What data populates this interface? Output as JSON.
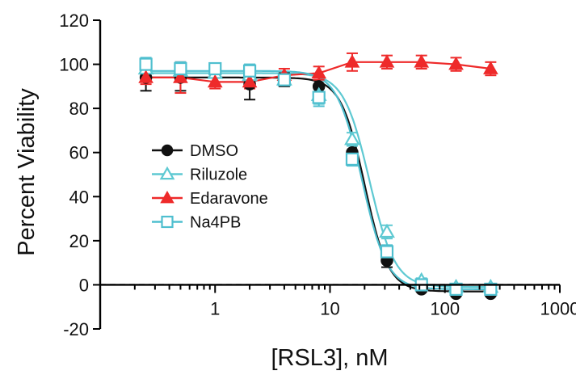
{
  "chart_data": {
    "type": "scatter",
    "title": "",
    "xlabel": "[RSL3], nM",
    "ylabel": "Percent Viability",
    "x_scale": "log",
    "xlim": [
      0.1,
      1000
    ],
    "ylim": [
      -20,
      120
    ],
    "x_ticks": [
      1,
      10,
      100,
      1000
    ],
    "x_tick_labels": [
      "1",
      "10",
      "100",
      "1000"
    ],
    "y_ticks": [
      -20,
      0,
      20,
      40,
      60,
      80,
      100,
      120
    ],
    "y_tick_labels": [
      "-20",
      "0",
      "20",
      "40",
      "60",
      "80",
      "100",
      "120"
    ],
    "reference_line": {
      "y": 0,
      "style": "dashed"
    },
    "legend_position": "center-left",
    "series": [
      {
        "name": "DMSO",
        "color": "#111111",
        "marker": "circle",
        "marker_filled": true,
        "x": [
          0.25,
          0.5,
          1,
          2,
          4,
          8,
          15.6,
          31.3,
          62.5,
          125,
          250
        ],
        "y": [
          94,
          94,
          97,
          91,
          93,
          90,
          60,
          11,
          -2,
          -4,
          -4
        ],
        "error": [
          6,
          6,
          3,
          7,
          3,
          4,
          4,
          3,
          1,
          1,
          1
        ],
        "fit": {
          "top": 94,
          "bottom": -3,
          "ic50": 20,
          "hill": 4.2
        }
      },
      {
        "name": "Riluzole",
        "color": "#5ec9d2",
        "marker": "triangle",
        "marker_filled": false,
        "x": [
          0.25,
          0.5,
          1,
          2,
          4,
          8,
          15.6,
          31.3,
          62.5,
          125,
          250
        ],
        "y": [
          98,
          97,
          96,
          95,
          93,
          86,
          66,
          24,
          2,
          -1,
          -1
        ],
        "error": [
          3,
          2,
          2,
          2,
          2,
          4,
          3,
          3,
          1,
          1,
          1
        ],
        "fit": {
          "top": 96,
          "bottom": -1,
          "ic50": 22,
          "hill": 3.9
        }
      },
      {
        "name": "Edaravone",
        "color": "#ee2a2a",
        "marker": "triangle",
        "marker_filled": true,
        "x": [
          0.25,
          0.5,
          1,
          2,
          4,
          8,
          15.6,
          31.3,
          62.5,
          125,
          250
        ],
        "y": [
          94,
          94,
          92,
          92,
          95,
          96,
          101,
          101,
          101,
          100,
          98
        ],
        "error": [
          3,
          7,
          3,
          3,
          3,
          3,
          4,
          3,
          3,
          3,
          3
        ]
      },
      {
        "name": "Na4PB",
        "color": "#4fbfcf",
        "marker": "square",
        "marker_filled": false,
        "x": [
          0.25,
          0.5,
          1,
          2,
          4,
          8,
          15.6,
          31.3,
          62.5,
          125,
          250
        ],
        "y": [
          100,
          98,
          98,
          97,
          93,
          85,
          57,
          15,
          0,
          -2,
          -2
        ],
        "error": [
          3,
          3,
          2,
          3,
          2,
          4,
          3,
          3,
          1,
          1,
          1
        ],
        "fit": {
          "top": 97,
          "bottom": -2,
          "ic50": 19,
          "hill": 4.0
        }
      }
    ]
  }
}
